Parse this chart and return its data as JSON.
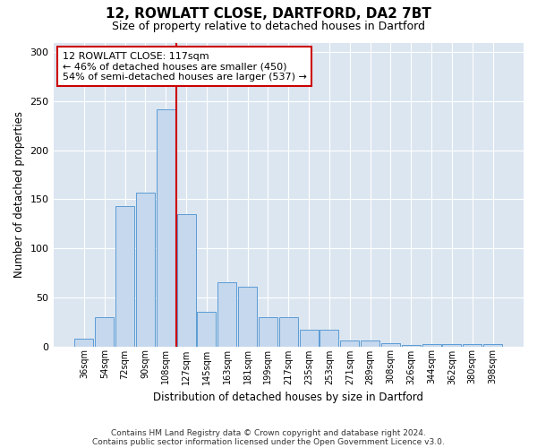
{
  "title1": "12, ROWLATT CLOSE, DARTFORD, DA2 7BT",
  "title2": "Size of property relative to detached houses in Dartford",
  "xlabel": "Distribution of detached houses by size in Dartford",
  "ylabel": "Number of detached properties",
  "bins": [
    "36sqm",
    "54sqm",
    "72sqm",
    "90sqm",
    "108sqm",
    "127sqm",
    "145sqm",
    "163sqm",
    "181sqm",
    "199sqm",
    "217sqm",
    "235sqm",
    "253sqm",
    "271sqm",
    "289sqm",
    "308sqm",
    "326sqm",
    "344sqm",
    "362sqm",
    "380sqm",
    "398sqm"
  ],
  "values": [
    8,
    30,
    143,
    157,
    242,
    135,
    35,
    65,
    61,
    30,
    30,
    17,
    17,
    6,
    6,
    3,
    1,
    2,
    2,
    2,
    2
  ],
  "bar_color": "#c5d8ed",
  "bar_edge_color": "#5b9bd5",
  "vline_color": "#cc0000",
  "annotation_text": "12 ROWLATT CLOSE: 117sqm\n← 46% of detached houses are smaller (450)\n54% of semi-detached houses are larger (537) →",
  "annotation_box_color": "#cc0000",
  "bg_color": "#dce6f1",
  "ylim": [
    0,
    310
  ],
  "yticks": [
    0,
    50,
    100,
    150,
    200,
    250,
    300
  ],
  "footnote1": "Contains HM Land Registry data © Crown copyright and database right 2024.",
  "footnote2": "Contains public sector information licensed under the Open Government Licence v3.0."
}
